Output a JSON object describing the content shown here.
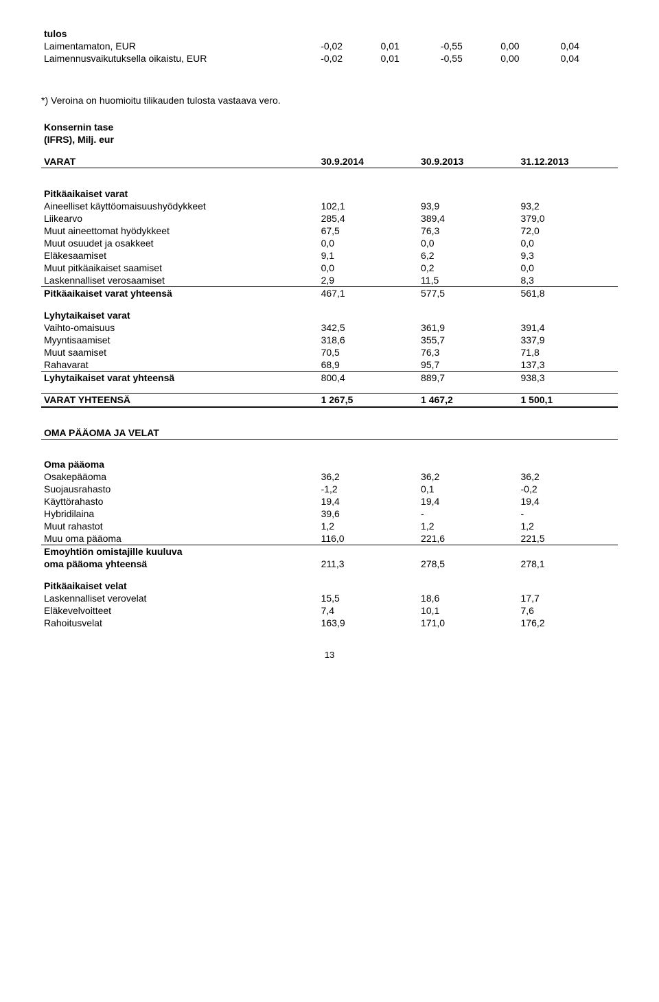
{
  "eps_table": {
    "title": "tulos",
    "rows": [
      {
        "label": "Laimentamaton, EUR",
        "v": [
          "-0,02",
          "0,01",
          "-0,55",
          "0,00",
          "0,04"
        ]
      },
      {
        "label": "Laimennusvaikutuksella oikaistu, EUR",
        "v": [
          "-0,02",
          "0,01",
          "-0,55",
          "0,00",
          "0,04"
        ]
      }
    ]
  },
  "footnote": "*) Veroina on huomioitu tilikauden tulosta vastaava vero.",
  "balance": {
    "heading1": "Konsernin tase",
    "heading2": "(IFRS), Milj. eur",
    "varat_label": "VARAT",
    "dates": [
      "30.9.2014",
      "30.9.2013",
      "31.12.2013"
    ],
    "sections": [
      {
        "title": "Pitkäaikaiset varat",
        "rows": [
          {
            "label": "Aineelliset käyttöomaisuushyödykkeet",
            "v": [
              "102,1",
              "93,9",
              "93,2"
            ]
          },
          {
            "label": "Liikearvo",
            "v": [
              "285,4",
              "389,4",
              "379,0"
            ]
          },
          {
            "label": "Muut aineettomat hyödykkeet",
            "v": [
              "67,5",
              "76,3",
              "72,0"
            ]
          },
          {
            "label": "Muut osuudet ja osakkeet",
            "v": [
              "0,0",
              "0,0",
              "0,0"
            ]
          },
          {
            "label": "Eläkesaamiset",
            "v": [
              "9,1",
              "6,2",
              "9,3"
            ]
          },
          {
            "label": "Muut pitkäaikaiset saamiset",
            "v": [
              "0,0",
              "0,2",
              "0,0"
            ]
          },
          {
            "label": "Laskennalliset verosaamiset",
            "v": [
              "2,9",
              "11,5",
              "8,3"
            ],
            "underline": true
          }
        ],
        "total": {
          "label": "Pitkäaikaiset varat yhteensä",
          "v": [
            "467,1",
            "577,5",
            "561,8"
          ]
        }
      },
      {
        "title": "Lyhytaikaiset varat",
        "rows": [
          {
            "label": "Vaihto-omaisuus",
            "v": [
              "342,5",
              "361,9",
              "391,4"
            ]
          },
          {
            "label": "Myyntisaamiset",
            "v": [
              "318,6",
              "355,7",
              "337,9"
            ]
          },
          {
            "label": "Muut saamiset",
            "v": [
              "70,5",
              "76,3",
              "71,8"
            ]
          },
          {
            "label": "Rahavarat",
            "v": [
              "68,9",
              "95,7",
              "137,3"
            ],
            "underline": true
          }
        ],
        "total": {
          "label": "Lyhytaikaiset varat yhteensä",
          "v": [
            "800,4",
            "889,7",
            "938,3"
          ]
        }
      }
    ],
    "grand_total": {
      "label": "VARAT YHTEENSÄ",
      "v": [
        "1 267,5",
        "1 467,2",
        "1 500,1"
      ]
    }
  },
  "equity": {
    "heading": "OMA PÄÄOMA JA VELAT",
    "sections": [
      {
        "title": "Oma pääoma",
        "rows": [
          {
            "label": "Osakepääoma",
            "v": [
              "36,2",
              "36,2",
              "36,2"
            ]
          },
          {
            "label": "Suojausrahasto",
            "v": [
              "-1,2",
              "0,1",
              "-0,2"
            ]
          },
          {
            "label": "Käyttörahasto",
            "v": [
              "19,4",
              "19,4",
              "19,4"
            ]
          },
          {
            "label": "Hybridilaina",
            "v": [
              "39,6",
              "-",
              "-"
            ]
          },
          {
            "label": "Muut rahastot",
            "v": [
              "1,2",
              "1,2",
              "1,2"
            ]
          },
          {
            "label": "Muu oma pääoma",
            "v": [
              "116,0",
              "221,6",
              "221,5"
            ],
            "underline": true
          }
        ],
        "total": {
          "label1": "Emoyhtiön omistajille kuuluva",
          "label2": "oma pääoma yhteensä",
          "v": [
            "211,3",
            "278,5",
            "278,1"
          ]
        }
      },
      {
        "title": "Pitkäaikaiset velat",
        "rows": [
          {
            "label": "Laskennalliset verovelat",
            "v": [
              "15,5",
              "18,6",
              "17,7"
            ]
          },
          {
            "label": "Eläkevelvoitteet",
            "v": [
              "7,4",
              "10,1",
              "7,6"
            ]
          },
          {
            "label": "Rahoitusvelat",
            "v": [
              "163,9",
              "171,0",
              "176,2"
            ]
          }
        ]
      }
    ]
  },
  "page_number": "13"
}
